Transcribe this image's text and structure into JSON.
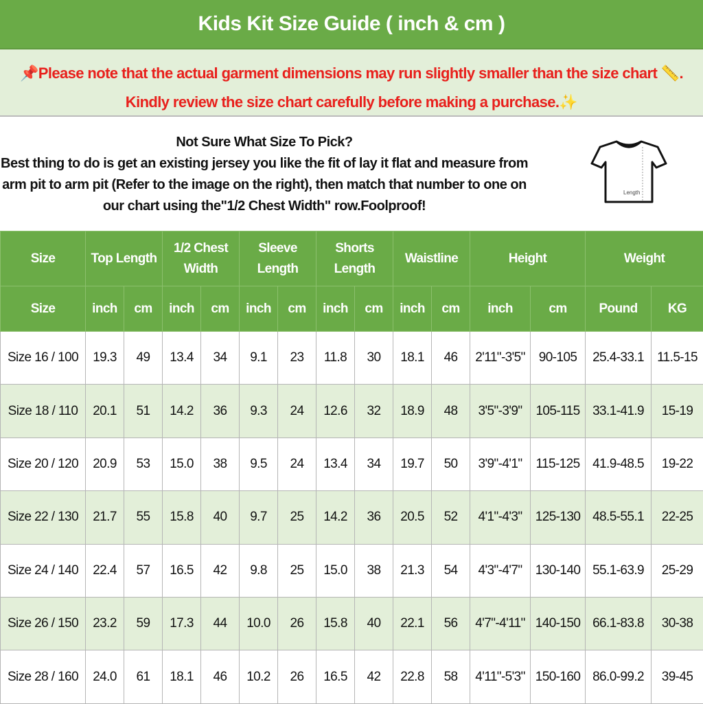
{
  "title": "Kids Kit Size Guide ( inch & cm )",
  "notice": {
    "line1": "Please note that the actual garment dimensions may run slightly smaller than the size chart",
    "line1_end": ".",
    "line2": "Kindly review the size chart carefully before making a purchase.",
    "icons": [
      "pushpin-icon",
      "ruler-icon",
      "sparkles-icon"
    ],
    "color": "#e8201c"
  },
  "info": {
    "heading": "Not Sure What Size To Pick?",
    "body": "Best thing to do is get an existing jersey you like the fit of lay it flat and measure from arm pit to arm pit (Refer to the image on the right), then match that number to one on our chart using the\"1/2 Chest Width\" row.Foolproof!",
    "image_label": "Length"
  },
  "colors": {
    "header_green": "#6aab47",
    "row_alt": "#e3efd9"
  },
  "table": {
    "groups": [
      "Size",
      "Top Length",
      "1/2 Chest Width",
      "Sleeve Length",
      "Shorts Length",
      "Waistline",
      "Height",
      "Weight"
    ],
    "subheaders": [
      "Size",
      "inch",
      "cm",
      "inch",
      "cm",
      "inch",
      "cm",
      "inch",
      "cm",
      "inch",
      "cm",
      "inch",
      "cm",
      "Pound",
      "KG"
    ],
    "rows": [
      [
        "Size 16 / 100",
        "19.3",
        "49",
        "13.4",
        "34",
        "9.1",
        "23",
        "11.8",
        "30",
        "18.1",
        "46",
        "2'11\"-3'5\"",
        "90-105",
        "25.4-33.1",
        "11.5-15"
      ],
      [
        "Size 18 / 110",
        "20.1",
        "51",
        "14.2",
        "36",
        "9.3",
        "24",
        "12.6",
        "32",
        "18.9",
        "48",
        "3'5\"-3'9\"",
        "105-115",
        "33.1-41.9",
        "15-19"
      ],
      [
        "Size 20 / 120",
        "20.9",
        "53",
        "15.0",
        "38",
        "9.5",
        "24",
        "13.4",
        "34",
        "19.7",
        "50",
        "3'9\"-4'1\"",
        "115-125",
        "41.9-48.5",
        "19-22"
      ],
      [
        "Size 22 / 130",
        "21.7",
        "55",
        "15.8",
        "40",
        "9.7",
        "25",
        "14.2",
        "36",
        "20.5",
        "52",
        "4'1\"-4'3\"",
        "125-130",
        "48.5-55.1",
        "22-25"
      ],
      [
        "Size 24 / 140",
        "22.4",
        "57",
        "16.5",
        "42",
        "9.8",
        "25",
        "15.0",
        "38",
        "21.3",
        "54",
        "4'3\"-4'7\"",
        "130-140",
        "55.1-63.9",
        "25-29"
      ],
      [
        "Size 26 / 150",
        "23.2",
        "59",
        "17.3",
        "44",
        "10.0",
        "26",
        "15.8",
        "40",
        "22.1",
        "56",
        "4'7\"-4'11\"",
        "140-150",
        "66.1-83.8",
        "30-38"
      ],
      [
        "Size 28 / 160",
        "24.0",
        "61",
        "18.1",
        "46",
        "10.2",
        "26",
        "16.5",
        "42",
        "22.8",
        "58",
        "4'11\"-5'3\"",
        "150-160",
        "86.0-99.2",
        "39-45"
      ]
    ]
  }
}
